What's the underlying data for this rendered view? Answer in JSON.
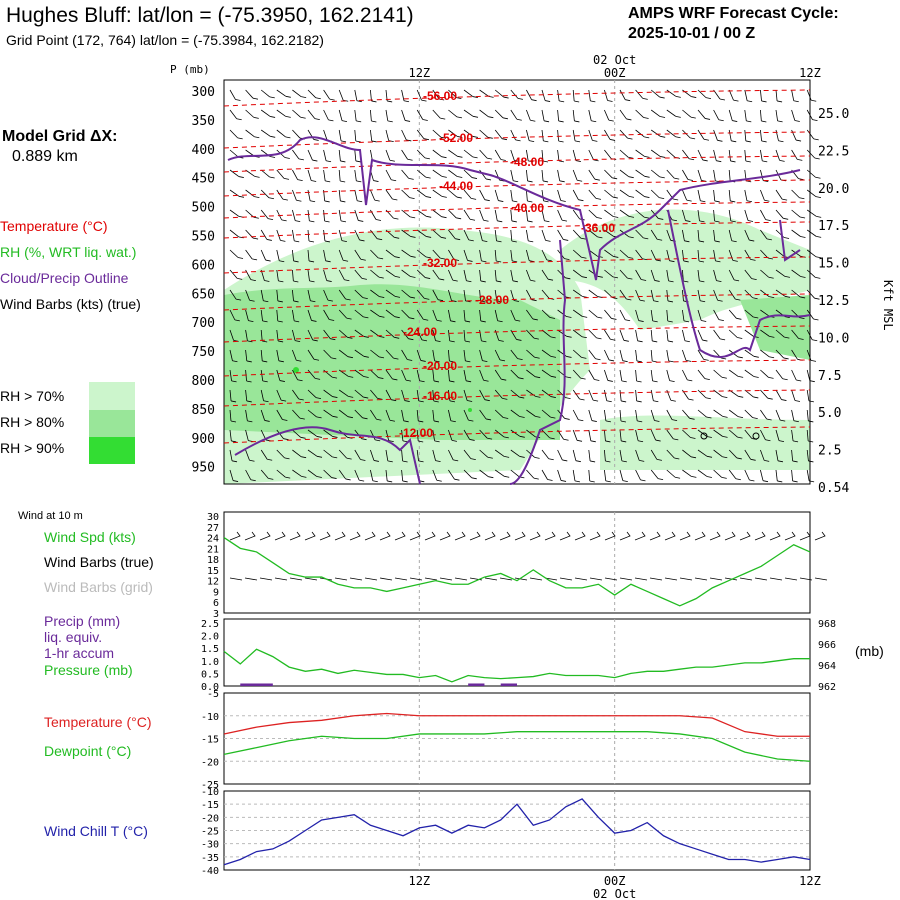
{
  "header": {
    "title": "Hughes Bluff:  lat/lon = (-75.3950, 162.2141)",
    "subtitle": "Grid Point (172, 764) lat/lon = (-75.3984, 162.2182)",
    "cycle_line1": "AMPS WRF Forecast Cycle:",
    "cycle_line2": "2025-10-01 / 00  Z"
  },
  "model": {
    "label": "Model Grid ΔX:",
    "value": "0.889 km"
  },
  "legend": {
    "temperature": "Temperature (°C)",
    "rh": "RH (%, WRT liq. wat.)",
    "cloud": "Cloud/Precip Outline",
    "wind": "Wind Barbs (kts) (true)",
    "rh70": "RH > 70%",
    "rh80": "RH > 80%",
    "rh90": "RH > 90%"
  },
  "colors": {
    "temp": "#e00000",
    "cloud": "#6a2a9a",
    "rh70": "#ccf5cc",
    "rh80": "#99e699",
    "rh90": "#33dd33",
    "wind_spd": "#22bb22",
    "pressure": "#22bb22",
    "precip": "#6a2a9a",
    "t2": "#dd2222",
    "td": "#22bb22",
    "chill": "#2222aa",
    "grid_barb": "#bbbbbb"
  },
  "time_axis": {
    "top_labels": [
      "12Z",
      "00Z",
      "12Z"
    ],
    "date_label": "02 Oct",
    "bottom_labels": [
      "12Z",
      "00Z",
      "12Z"
    ],
    "bottom_date": "02 Oct"
  },
  "chart_data": [
    {
      "type": "heatmap",
      "name": "cross-section",
      "ylabel": "P (mb)",
      "y_right_label": "Kft MSL",
      "pressure_ticks": [
        300,
        350,
        400,
        450,
        500,
        550,
        600,
        650,
        700,
        750,
        800,
        850,
        900,
        950
      ],
      "height_ticks": [
        "25.0",
        "22.5",
        "20.0",
        "17.5",
        "15.0",
        "12.5",
        "10.0",
        "7.5",
        "5.0",
        "2.5",
        "0.54"
      ],
      "temp_labels": [
        "-56.00",
        "-52.00",
        "-48.00",
        "-44.00",
        "-40.00",
        "-36.00",
        "-32.00",
        "-28.00",
        "-24.00",
        "-20.00",
        "-16.00",
        "-12.00"
      ],
      "x_hours": [
        0,
        12,
        24,
        36
      ]
    },
    {
      "type": "line",
      "name": "wind-panel",
      "title": "Wind at 10 m",
      "series_labels": [
        "Wind Spd (kts)",
        "Wind Barbs (true)",
        "Wind Barbs (grid)"
      ],
      "y_ticks": [
        30,
        27,
        24,
        21,
        18,
        15,
        12,
        9,
        6,
        3
      ],
      "ylim": [
        3,
        30
      ],
      "x": [
        0,
        1,
        2,
        3,
        4,
        5,
        6,
        7,
        8,
        9,
        10,
        11,
        12,
        13,
        14,
        15,
        16,
        17,
        18,
        19,
        20,
        21,
        22,
        23,
        24,
        25,
        26,
        27,
        28,
        29,
        30,
        31,
        32,
        33,
        34,
        35,
        36
      ],
      "values": [
        24,
        21,
        20,
        17,
        14,
        13,
        13,
        11,
        10,
        10,
        9,
        10,
        11,
        12,
        11,
        11,
        13,
        14,
        12,
        15,
        12,
        10,
        10,
        11,
        8,
        11,
        9,
        7,
        5,
        7,
        10,
        12,
        14,
        16,
        19,
        22,
        20
      ]
    },
    {
      "type": "line",
      "name": "precip-pressure-panel",
      "series_labels": [
        "Precip (mm)",
        "liq. equiv.",
        "1-hr accum",
        "Pressure (mb)"
      ],
      "y_left_ticks": [
        "2.5",
        "2.0",
        "1.5",
        "1.0",
        "0.5",
        "0.0"
      ],
      "y_right_ticks": [
        968,
        966,
        964,
        962
      ],
      "y_right_unit": "(mb)",
      "x": [
        0,
        1,
        2,
        3,
        4,
        5,
        6,
        7,
        8,
        9,
        10,
        11,
        12,
        13,
        14,
        15,
        16,
        17,
        18,
        19,
        20,
        21,
        22,
        23,
        24,
        25,
        26,
        27,
        28,
        29,
        30,
        31,
        32,
        33,
        34,
        35,
        36
      ],
      "pressure": [
        965.3,
        964.1,
        965.5,
        964.8,
        963.8,
        963.4,
        963.6,
        963.2,
        963.5,
        963.3,
        963.1,
        963.1,
        962.8,
        963.0,
        962.4,
        963.0,
        962.8,
        962.7,
        962.8,
        962.9,
        963.2,
        963.0,
        963.0,
        963.0,
        962.8,
        963.2,
        963.4,
        963.4,
        963.6,
        963.8,
        963.8,
        964.0,
        964.2,
        964.2,
        964.4,
        964.6,
        964.6
      ],
      "precip_spans": [
        [
          1,
          3
        ],
        [
          15,
          16
        ],
        [
          17,
          18
        ]
      ],
      "precip_value": 0.1
    },
    {
      "type": "line",
      "name": "temperature-panel",
      "series_labels": [
        "Temperature (°C)",
        "Dewpoint (°C)"
      ],
      "y_ticks": [
        -5,
        -10,
        -15,
        -20,
        -25
      ],
      "ylim": [
        -25,
        -5
      ],
      "x": [
        0,
        2,
        4,
        6,
        8,
        10,
        12,
        14,
        16,
        18,
        20,
        22,
        24,
        26,
        28,
        30,
        32,
        34,
        36
      ],
      "temperature": [
        -14,
        -12.5,
        -11.5,
        -11,
        -10,
        -9.5,
        -10,
        -10,
        -10,
        -10,
        -10,
        -10,
        -10,
        -10,
        -10,
        -10.5,
        -13.5,
        -14.5,
        -14.5
      ],
      "dewpoint": [
        -18.5,
        -17,
        -15.5,
        -14.5,
        -15,
        -15,
        -14,
        -14,
        -14,
        -13.5,
        -13.5,
        -13.5,
        -13.5,
        -13.5,
        -14,
        -15,
        -18,
        -19.5,
        -20
      ]
    },
    {
      "type": "line",
      "name": "wind-chill-panel",
      "series_labels": [
        "Wind Chill T (°C)"
      ],
      "y_ticks": [
        -10,
        -15,
        -20,
        -25,
        -30,
        -35,
        -40
      ],
      "ylim": [
        -40,
        -10
      ],
      "x": [
        0,
        1,
        2,
        3,
        4,
        5,
        6,
        7,
        8,
        9,
        10,
        11,
        12,
        13,
        14,
        15,
        16,
        17,
        18,
        19,
        20,
        21,
        22,
        23,
        24,
        25,
        26,
        27,
        28,
        29,
        30,
        31,
        32,
        33,
        34,
        35,
        36
      ],
      "values": [
        -38,
        -36,
        -33,
        -32,
        -29,
        -25,
        -21,
        -20,
        -19,
        -23,
        -25,
        -27,
        -24,
        -23,
        -26,
        -23,
        -24,
        -21,
        -15,
        -23,
        -21,
        -16,
        -13,
        -20,
        -26,
        -25,
        -22,
        -27,
        -30,
        -32,
        -34,
        -36,
        -36,
        -37,
        -36,
        -35,
        -36
      ]
    }
  ]
}
